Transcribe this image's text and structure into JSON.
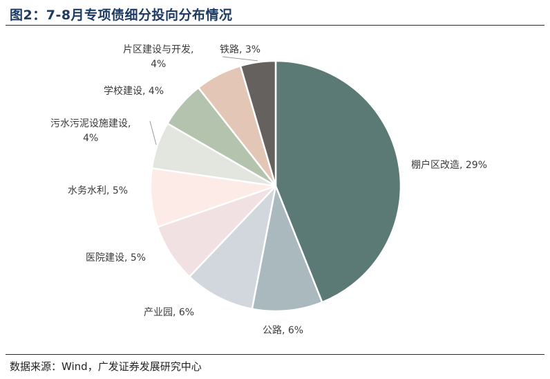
{
  "header": {
    "title": "图2：7-8月专项债细分投向分布情况"
  },
  "footer": {
    "source": "数据来源：Wind，广发证券发展研究中心"
  },
  "chart_data": {
    "type": "pie",
    "title": "图2：7-8月专项债细分投向分布情况",
    "start_angle_deg": 0,
    "direction": "clockwise",
    "slices": [
      {
        "label": "棚户区改造",
        "value": 29,
        "display": "棚户区改造, 29%",
        "color": "#5b7a76"
      },
      {
        "label": "公路",
        "value": 6,
        "display": "公路, 6%",
        "color": "#a9b9bd"
      },
      {
        "label": "产业园",
        "value": 6,
        "display": "产业园, 6%",
        "color": "#d2d6dd"
      },
      {
        "label": "医院建设",
        "value": 5,
        "display": "医院建设, 5%",
        "color": "#f1e1e2"
      },
      {
        "label": "水务水利",
        "value": 5,
        "display": "水务水利, 5%",
        "color": "#fcebe7"
      },
      {
        "label": "污水污泥设施建设",
        "value": 4,
        "display": "污水污泥设施建设, 4%",
        "display_lines": [
          "污水污泥设施建设,",
          "4%"
        ],
        "color": "#e2e6df"
      },
      {
        "label": "学校建设",
        "value": 4,
        "display": "学校建设, 4%",
        "color": "#b4c3ad"
      },
      {
        "label": "片区建设与开发",
        "value": 4,
        "display": "片区建设与开发, 4%",
        "display_lines": [
          "片区建设与开发,",
          "4%"
        ],
        "color": "#e3c6b5"
      },
      {
        "label": "铁路",
        "value": 3,
        "display": "铁路, 3%",
        "color": "#65615f"
      }
    ]
  }
}
